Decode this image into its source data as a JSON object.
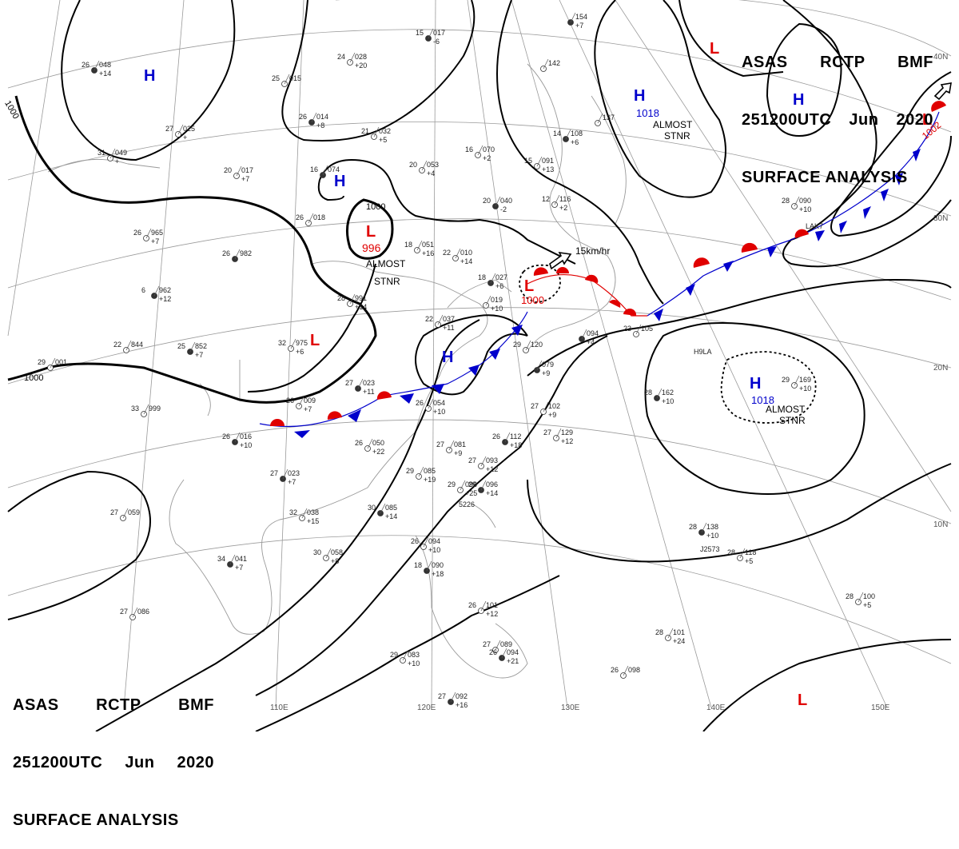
{
  "header": {
    "line1": [
      "ASAS",
      "RCTP",
      "BMF"
    ],
    "line2": [
      "251200UTC",
      "Jun",
      "2020"
    ],
    "line3": "SURFACE ANALYSIS"
  },
  "colors": {
    "high": "#0000cc",
    "low": "#e00000",
    "isobar": "#000000",
    "coast": "#999999"
  },
  "latitude_labels": [
    "40N",
    "30N",
    "20N",
    "10N"
  ],
  "longitude_labels": [
    "110E",
    "120E",
    "130E",
    "140E",
    "150E"
  ],
  "isobar_labels": [
    "1000",
    "1000",
    "1000"
  ],
  "highs": [
    {
      "letter": "H"
    },
    {
      "letter": "H"
    },
    {
      "letter": "H",
      "pressure": "1018",
      "note": [
        "ALMOST",
        "STNR"
      ]
    },
    {
      "letter": "H"
    },
    {
      "letter": "H"
    },
    {
      "letter": "H",
      "pressure": "1018",
      "note": [
        "ALMOST",
        "STNR"
      ]
    }
  ],
  "lows": [
    {
      "letter": "L",
      "pressure": "996",
      "note": [
        "ALMOST",
        "STNR"
      ]
    },
    {
      "letter": "L"
    },
    {
      "letter": "L",
      "pressure": "1000",
      "movement": "15km/hr"
    },
    {
      "letter": "L"
    },
    {
      "letter": "L",
      "pressure": "1002"
    },
    {
      "letter": "L"
    }
  ],
  "stations": [
    {
      "t": "26",
      "p": "048",
      "d": "+14"
    },
    {
      "t": "25",
      "p": "015",
      "d": ""
    },
    {
      "t": "24",
      "p": "028",
      "d": "+20"
    },
    {
      "t": "15",
      "p": "017",
      "d": "-6"
    },
    {
      "t": "27",
      "p": "025",
      "d": "+"
    },
    {
      "t": "31",
      "p": "049",
      "d": "+"
    },
    {
      "t": "26",
      "p": "014",
      "d": "+8"
    },
    {
      "t": "21",
      "p": "032",
      "d": "+5"
    },
    {
      "t": "20",
      "p": "017",
      "d": "+7"
    },
    {
      "t": "16",
      "p": "074",
      "d": ""
    },
    {
      "t": "20",
      "p": "053",
      "d": "+4"
    },
    {
      "t": "16",
      "p": "070",
      "d": "+2"
    },
    {
      "t": "20",
      "p": "040",
      "d": "-2"
    },
    {
      "t": "26",
      "p": "018",
      "d": ""
    },
    {
      "t": "26",
      "p": "965",
      "d": "+7"
    },
    {
      "t": "26",
      "p": "982",
      "d": ""
    },
    {
      "t": "18",
      "p": "051",
      "d": "+16"
    },
    {
      "t": "22",
      "p": "010",
      "d": "+14"
    },
    {
      "t": "6",
      "p": "962",
      "d": "+12"
    },
    {
      "t": "28",
      "p": "991",
      "d": "+14"
    },
    {
      "t": "22",
      "p": "844",
      "d": ""
    },
    {
      "t": "25",
      "p": "852",
      "d": "+7"
    },
    {
      "t": "32",
      "p": "975",
      "d": "+6"
    },
    {
      "t": "29",
      "p": "001",
      "d": ""
    },
    {
      "t": "27",
      "p": "023",
      "d": "+11"
    },
    {
      "t": "33",
      "p": "999",
      "d": ""
    },
    {
      "t": "26",
      "p": "009",
      "d": "+7"
    },
    {
      "t": "26",
      "p": "016",
      "d": "+10"
    },
    {
      "t": "26",
      "p": "054",
      "d": "+10"
    },
    {
      "t": "26",
      "p": "050",
      "d": "+22"
    },
    {
      "t": "27",
      "p": "023",
      "d": "+7"
    },
    {
      "t": "27",
      "p": "059",
      "d": ""
    },
    {
      "t": "32",
      "p": "038",
      "d": "+15"
    },
    {
      "t": "30",
      "p": "085",
      "d": "+14"
    },
    {
      "t": "29",
      "p": "085",
      "d": "+19"
    },
    {
      "t": "29",
      "p": "096",
      "d": "+25"
    },
    {
      "t": "29",
      "p": "096",
      "d": "+14"
    },
    {
      "t": "27",
      "p": "081",
      "d": "+9"
    },
    {
      "t": "27",
      "p": "093",
      "d": "+12"
    },
    {
      "t": "26",
      "p": "112",
      "d": "+18"
    },
    {
      "t": "27",
      "p": "102",
      "d": "+9"
    },
    {
      "t": "27",
      "p": "129",
      "d": "+12"
    },
    {
      "t": "34",
      "p": "041",
      "d": "+7"
    },
    {
      "t": "30",
      "p": "058",
      "d": "+8"
    },
    {
      "t": "26",
      "p": "094",
      "d": "+10"
    },
    {
      "t": "18",
      "p": "090",
      "d": "+18"
    },
    {
      "t": "26",
      "p": "101",
      "d": "+12"
    },
    {
      "t": "27",
      "p": "089",
      "d": ""
    },
    {
      "t": "26",
      "p": "094",
      "d": "+21"
    },
    {
      "t": "27",
      "p": "086",
      "d": ""
    },
    {
      "t": "29",
      "p": "083",
      "d": "+10"
    },
    {
      "t": "27",
      "p": "092",
      "d": "+16"
    },
    {
      "t": "26",
      "p": "098",
      "d": ""
    },
    {
      "t": "28",
      "p": "101",
      "d": "+24"
    },
    {
      "t": "28",
      "p": "138",
      "d": "+10"
    },
    {
      "t": "28",
      "p": "118",
      "d": "+5"
    },
    {
      "t": "28",
      "p": "100",
      "d": "+5"
    },
    {
      "t": "28",
      "p": "162",
      "d": "+10"
    },
    {
      "t": "29",
      "p": "169",
      "d": "+10"
    },
    {
      "t": "28",
      "p": "090",
      "d": "+10"
    },
    {
      "t": "",
      "p": "154",
      "d": "+7"
    },
    {
      "t": "",
      "p": "142",
      "d": ""
    },
    {
      "t": "",
      "p": "137",
      "d": ""
    },
    {
      "t": "14",
      "p": "108",
      "d": "+6"
    },
    {
      "t": "15",
      "p": "091",
      "d": "+13"
    },
    {
      "t": "12",
      "p": "116",
      "d": "+2"
    },
    {
      "t": "18",
      "p": "027",
      "d": "+6"
    },
    {
      "t": "",
      "p": "019",
      "d": "+10"
    },
    {
      "t": "22",
      "p": "037",
      "d": "+11"
    },
    {
      "t": "",
      "p": "094",
      "d": "+4"
    },
    {
      "t": "23",
      "p": "105",
      "d": ""
    },
    {
      "t": "29",
      "p": "120",
      "d": ""
    },
    {
      "t": "",
      "p": "079",
      "d": "+9"
    }
  ],
  "station_codes": [
    "H9LA",
    "J2573",
    "LAK7",
    "5226"
  ]
}
